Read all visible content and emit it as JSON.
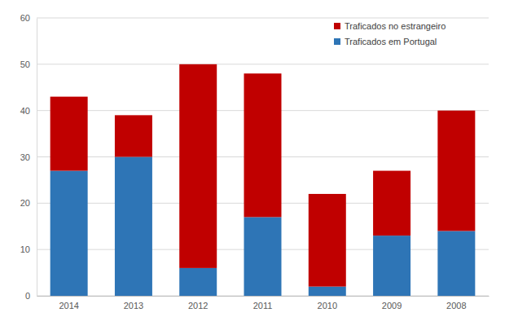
{
  "chart_data": {
    "type": "bar",
    "stacked": true,
    "categories": [
      "2014",
      "2013",
      "2012",
      "2011",
      "2010",
      "2009",
      "2008"
    ],
    "series": [
      {
        "name": "Traficados em Portugal",
        "color": "#2e75b6",
        "values": [
          27,
          30,
          6,
          17,
          2,
          13,
          14
        ]
      },
      {
        "name": "Traficados no estrangeiro",
        "color": "#c00000",
        "values": [
          16,
          9,
          44,
          31,
          20,
          14,
          26
        ]
      }
    ],
    "ylim": [
      0,
      60
    ],
    "yticks": [
      0,
      10,
      20,
      30,
      40,
      50,
      60
    ],
    "grid": true,
    "legend": "top-right"
  }
}
